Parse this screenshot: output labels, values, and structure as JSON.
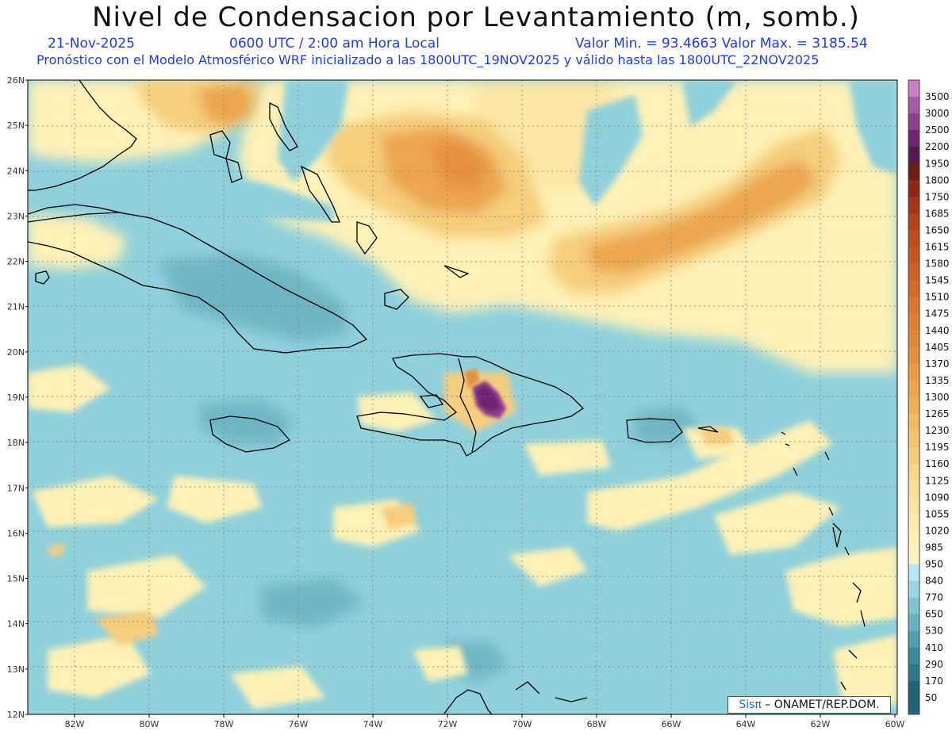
{
  "header": {
    "title": "Nivel de Condensacion por Levantamiento (m, somb.)",
    "date": "21-Nov-2025",
    "time": "0600 UTC / 2:00 am Hora Local",
    "minmax": "Valor Min. = 93.4663  Valor Max. = 3185.54",
    "forecast": "Pronóstico con el Modelo Atmosférico WRF inicializado a las 1800UTC_19NOV2025 y válido hasta las  1800UTC_22NOV2025"
  },
  "axes": {
    "lat_labels": [
      "26N",
      "25N",
      "24N",
      "23N",
      "22N",
      "21N",
      "20N",
      "19N",
      "18N",
      "17N",
      "16N",
      "15N",
      "14N",
      "13N",
      "12N"
    ],
    "lon_labels": [
      "82W",
      "80W",
      "78W",
      "76W",
      "74W",
      "72W",
      "70W",
      "68W",
      "66W",
      "64W",
      "62W",
      "60W"
    ]
  },
  "colorbar": {
    "labels": [
      "3500",
      "3000",
      "2500",
      "2200",
      "1950",
      "1800",
      "1750",
      "1685",
      "1650",
      "1615",
      "1580",
      "1545",
      "1510",
      "1475",
      "1440",
      "1405",
      "1370",
      "1335",
      "1300",
      "1265",
      "1230",
      "1195",
      "1160",
      "1125",
      "1090",
      "1055",
      "1020",
      "985",
      "950",
      "840",
      "770",
      "650",
      "530",
      "410",
      "290",
      "170",
      "50"
    ],
    "colors": [
      "#c77fc4",
      "#a85aa8",
      "#8d3f8d",
      "#6e2470",
      "#541a4e",
      "#6b1e14",
      "#8a2a14",
      "#a23718",
      "#b0421c",
      "#bb4d20",
      "#c45726",
      "#cb612a",
      "#d16b2e",
      "#d77531",
      "#dc7f35",
      "#e08838",
      "#e4923d",
      "#e89c44",
      "#eba64d",
      "#eeb057",
      "#f1ba63",
      "#f4c470",
      "#f6cd7d",
      "#f8d68b",
      "#fadf99",
      "#fbe6a5",
      "#fcecae",
      "#fdf1b6",
      "#fdf4bd",
      "#b7e6ec",
      "#9ad7e0",
      "#7ec3cf",
      "#67b0bf",
      "#529dae",
      "#3e8a9c",
      "#2e7789",
      "#1f6576"
    ]
  },
  "credit": {
    "logo": "Sisπ",
    "text": " – ONAMET/REP.DOM."
  },
  "colors": {
    "ocean_base": "#8fd0db",
    "ocean_deep": "#6fb5c4",
    "humid_light": "#b9e6ec",
    "dry_light": "#fdf1b6",
    "dry_mid": "#f6cd7d",
    "dry_high": "#eba64d",
    "peak": "#8d3f8d"
  }
}
